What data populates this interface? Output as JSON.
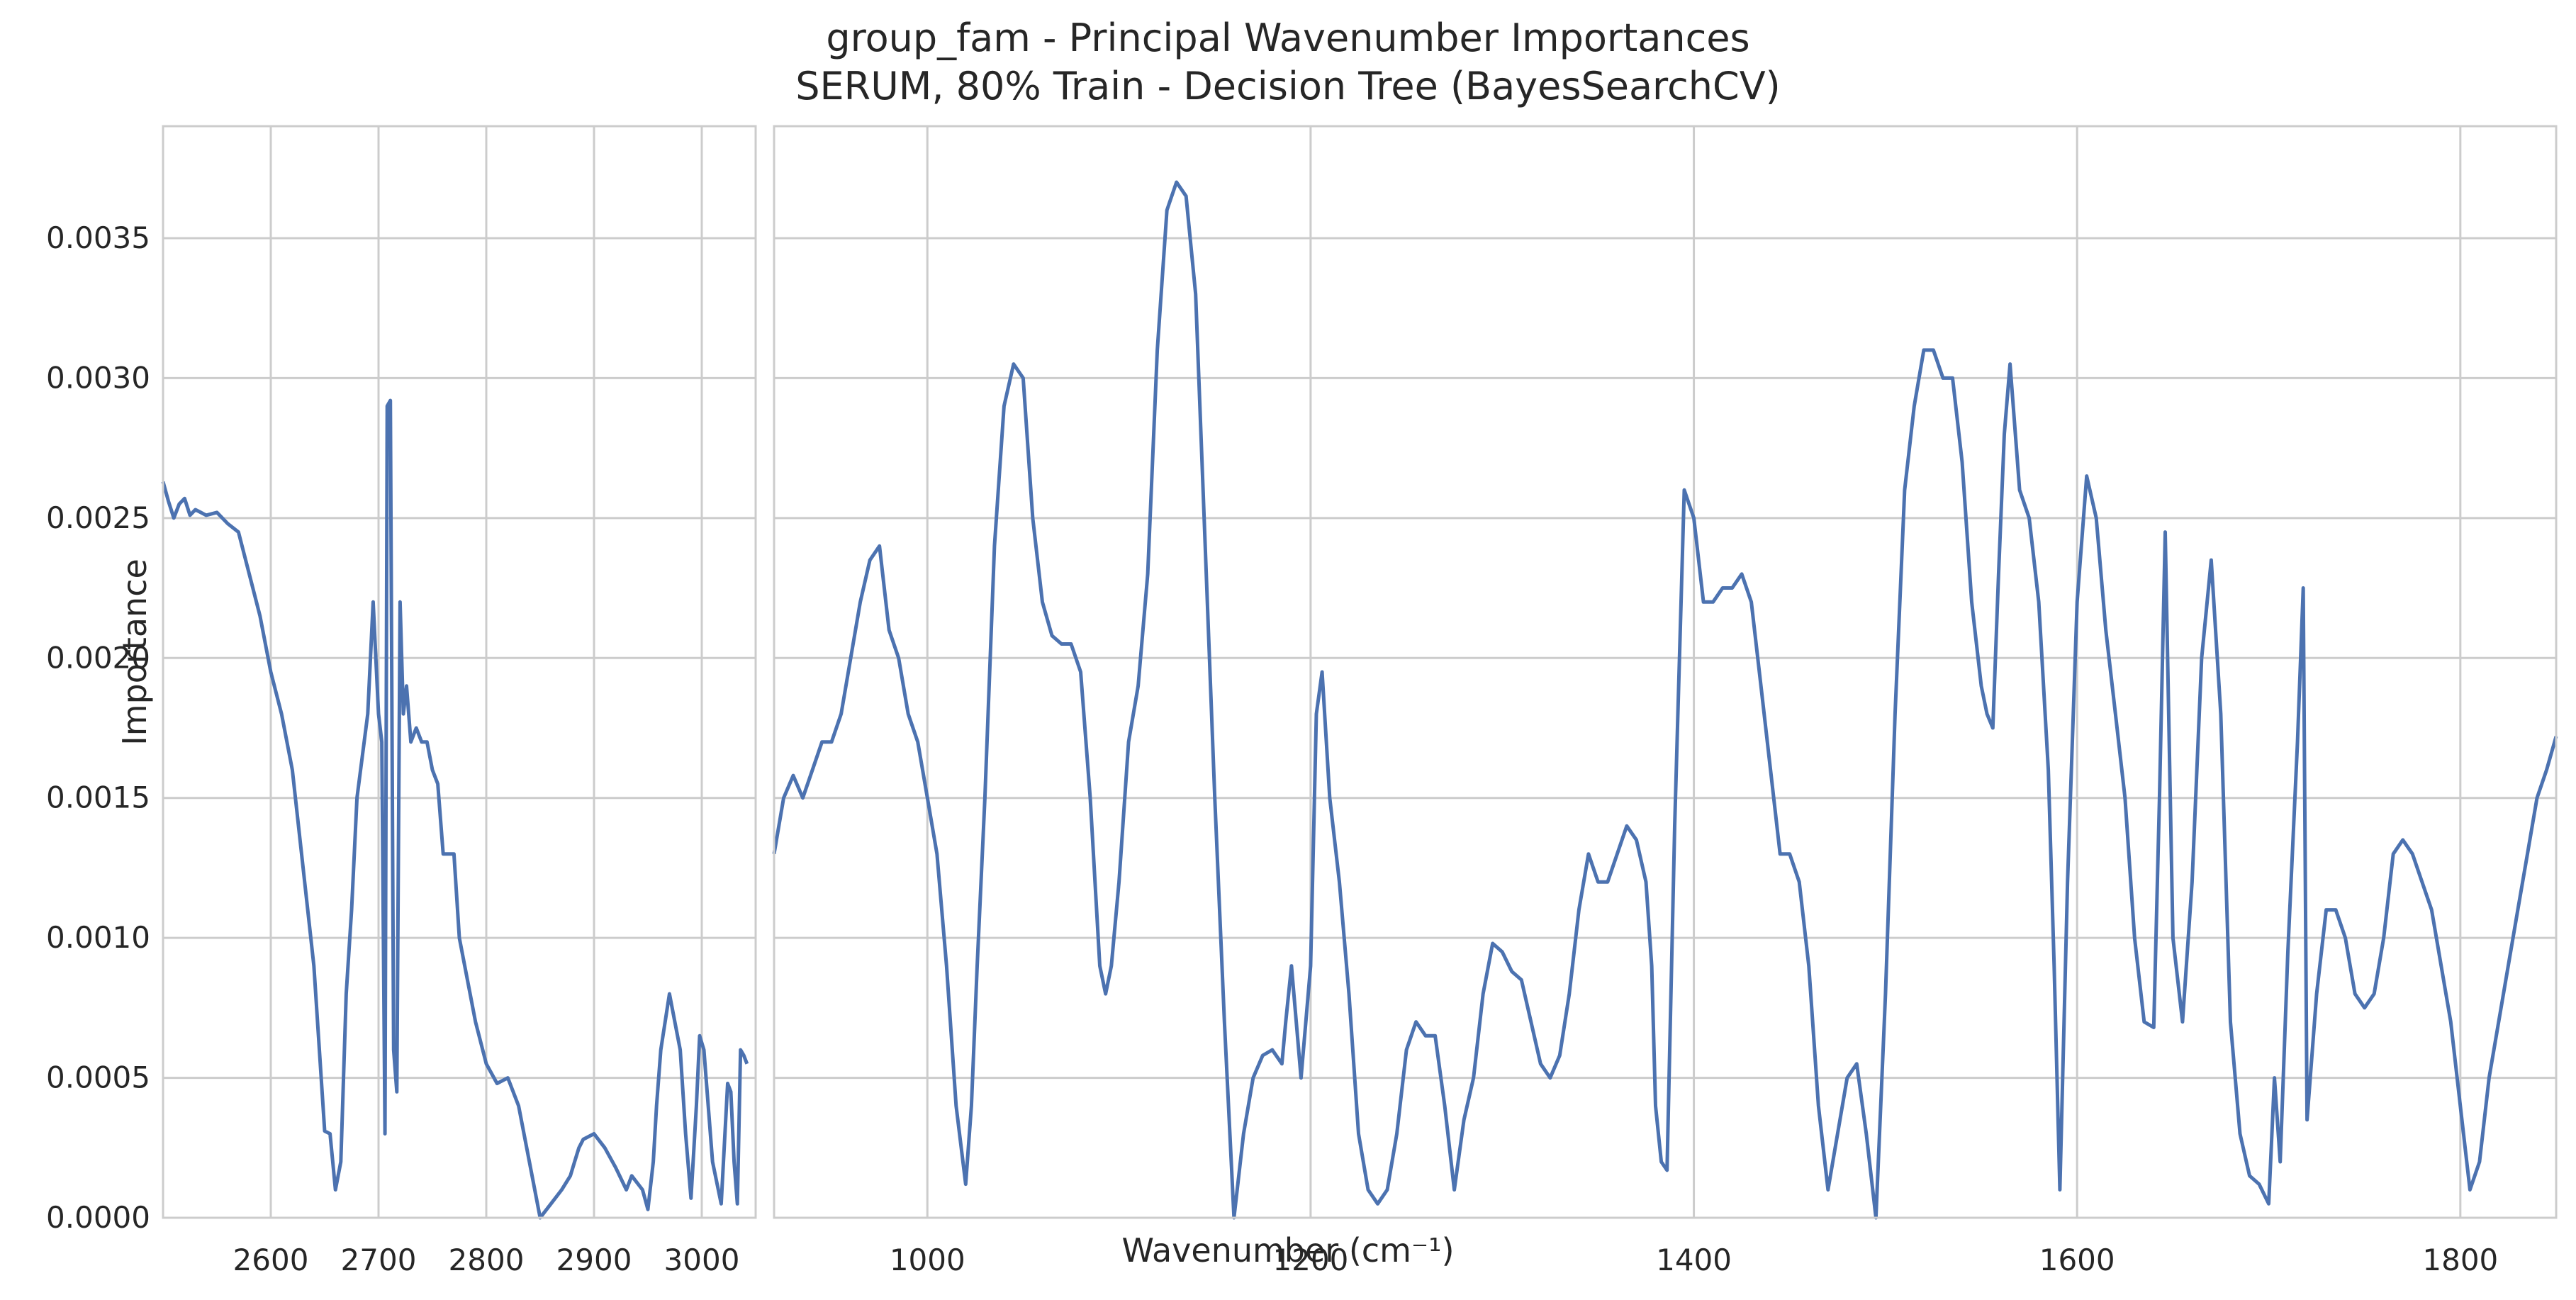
{
  "chart_data": {
    "type": "line",
    "title": "group_fam - Principal Wavenumber Importances",
    "subtitle": "SERUM, 80% Train - Decision Tree (BayesSearchCV)",
    "xlabel": "Wavenumber (cm⁻¹)",
    "ylabel": "Importance",
    "grid": true,
    "ylim": [
      0,
      0.0039
    ],
    "y_ticks": [
      "0.0000",
      "0.0005",
      "0.0010",
      "0.0015",
      "0.0020",
      "0.0025",
      "0.0030",
      "0.0035"
    ],
    "series_color": "#4c72b0",
    "panels": [
      {
        "name": "left",
        "xlim": [
          2500,
          3050
        ],
        "x_ticks": [
          2600,
          2700,
          2800,
          2900,
          3000
        ],
        "x": [
          2500,
          2505,
          2510,
          2515,
          2520,
          2525,
          2530,
          2535,
          2540,
          2550,
          2560,
          2570,
          2580,
          2590,
          2600,
          2610,
          2620,
          2630,
          2640,
          2650,
          2655,
          2660,
          2665,
          2670,
          2675,
          2680,
          2690,
          2695,
          2700,
          2703,
          2706,
          2708,
          2711,
          2714,
          2717,
          2720,
          2723,
          2726,
          2730,
          2735,
          2740,
          2745,
          2750,
          2755,
          2760,
          2770,
          2775,
          2780,
          2785,
          2790,
          2800,
          2810,
          2820,
          2830,
          2840,
          2850,
          2860,
          2870,
          2878,
          2882,
          2886,
          2890,
          2900,
          2910,
          2920,
          2930,
          2935,
          2945,
          2950,
          2955,
          2958,
          2962,
          2970,
          2980,
          2985,
          2990,
          2995,
          2998,
          3002,
          3006,
          3010,
          3018,
          3024,
          3027,
          3030,
          3033,
          3036,
          3039,
          3042
        ],
        "y": [
          0.00263,
          0.00256,
          0.0025,
          0.00255,
          0.00257,
          0.00251,
          0.00253,
          0.00252,
          0.00251,
          0.00252,
          0.00248,
          0.00245,
          0.0023,
          0.00215,
          0.00195,
          0.0018,
          0.0016,
          0.00125,
          0.0009,
          0.00031,
          0.0003,
          0.0001,
          0.0002,
          0.0008,
          0.0011,
          0.0015,
          0.0018,
          0.0022,
          0.0018,
          0.0017,
          0.0003,
          0.0029,
          0.00292,
          0.0006,
          0.00045,
          0.0022,
          0.0018,
          0.0019,
          0.0017,
          0.00175,
          0.0017,
          0.0017,
          0.0016,
          0.00155,
          0.0013,
          0.0013,
          0.001,
          0.0009,
          0.0008,
          0.0007,
          0.00055,
          0.00048,
          0.0005,
          0.0004,
          0.0002,
          0.0,
          5e-05,
          0.0001,
          0.00015,
          0.0002,
          0.00025,
          0.00028,
          0.0003,
          0.00025,
          0.00018,
          0.0001,
          0.00015,
          0.0001,
          3e-05,
          0.0002,
          0.0004,
          0.0006,
          0.0008,
          0.0006,
          0.0003,
          7e-05,
          0.0004,
          0.00065,
          0.0006,
          0.0004,
          0.0002,
          5e-05,
          0.00048,
          0.00045,
          0.0002,
          5e-05,
          0.0006,
          0.00058,
          0.00055
        ]
      },
      {
        "name": "right",
        "xlim": [
          920,
          1850
        ],
        "x_ticks": [
          1000,
          1200,
          1400,
          1600,
          1800
        ],
        "x": [
          920,
          925,
          930,
          935,
          940,
          945,
          950,
          955,
          960,
          965,
          970,
          975,
          980,
          985,
          990,
          995,
          1000,
          1005,
          1010,
          1015,
          1020,
          1023,
          1026,
          1030,
          1035,
          1040,
          1045,
          1050,
          1055,
          1060,
          1065,
          1070,
          1075,
          1080,
          1085,
          1090,
          1093,
          1096,
          1100,
          1105,
          1110,
          1115,
          1120,
          1125,
          1130,
          1135,
          1140,
          1145,
          1150,
          1155,
          1160,
          1165,
          1170,
          1175,
          1180,
          1185,
          1187,
          1190,
          1195,
          1200,
          1203,
          1206,
          1210,
          1215,
          1220,
          1225,
          1230,
          1235,
          1240,
          1245,
          1250,
          1255,
          1260,
          1265,
          1270,
          1275,
          1280,
          1285,
          1290,
          1295,
          1300,
          1305,
          1310,
          1315,
          1320,
          1325,
          1330,
          1335,
          1340,
          1345,
          1350,
          1355,
          1360,
          1365,
          1370,
          1375,
          1378,
          1380,
          1383,
          1386,
          1390,
          1395,
          1400,
          1405,
          1410,
          1415,
          1420,
          1425,
          1430,
          1435,
          1440,
          1445,
          1450,
          1455,
          1460,
          1465,
          1470,
          1475,
          1480,
          1485,
          1490,
          1495,
          1500,
          1505,
          1510,
          1515,
          1520,
          1525,
          1530,
          1535,
          1540,
          1545,
          1550,
          1553,
          1556,
          1559,
          1562,
          1565,
          1570,
          1575,
          1580,
          1585,
          1588,
          1591,
          1595,
          1600,
          1605,
          1610,
          1615,
          1620,
          1625,
          1630,
          1635,
          1640,
          1643,
          1646,
          1650,
          1655,
          1660,
          1665,
          1670,
          1675,
          1680,
          1685,
          1690,
          1695,
          1700,
          1703,
          1706,
          1710,
          1715,
          1718,
          1720,
          1725,
          1730,
          1735,
          1740,
          1745,
          1750,
          1755,
          1760,
          1765,
          1770,
          1775,
          1780,
          1785,
          1790,
          1795,
          1800,
          1805,
          1810,
          1815,
          1820,
          1825,
          1830,
          1835,
          1840,
          1845,
          1850
        ],
        "y": [
          0.0013,
          0.0015,
          0.00158,
          0.0015,
          0.0016,
          0.0017,
          0.0017,
          0.0018,
          0.002,
          0.0022,
          0.00235,
          0.0024,
          0.0021,
          0.002,
          0.0018,
          0.0017,
          0.0015,
          0.0013,
          0.0009,
          0.0004,
          0.00012,
          0.0004,
          0.0009,
          0.0015,
          0.0024,
          0.0029,
          0.00305,
          0.003,
          0.0025,
          0.0022,
          0.00208,
          0.00205,
          0.00205,
          0.00195,
          0.0015,
          0.0009,
          0.0008,
          0.0009,
          0.0012,
          0.0017,
          0.0019,
          0.0023,
          0.0031,
          0.0036,
          0.0037,
          0.00365,
          0.0033,
          0.0024,
          0.0015,
          0.0007,
          0.0,
          0.0003,
          0.0005,
          0.00058,
          0.0006,
          0.00055,
          0.0007,
          0.0009,
          0.0005,
          0.0009,
          0.0018,
          0.00195,
          0.0015,
          0.0012,
          0.0008,
          0.0003,
          0.0001,
          5e-05,
          0.0001,
          0.0003,
          0.0006,
          0.0007,
          0.00065,
          0.00065,
          0.0004,
          0.0001,
          0.00035,
          0.0005,
          0.0008,
          0.00098,
          0.00095,
          0.00088,
          0.00085,
          0.0007,
          0.00055,
          0.0005,
          0.00058,
          0.0008,
          0.0011,
          0.0013,
          0.0012,
          0.0012,
          0.0013,
          0.0014,
          0.00135,
          0.0012,
          0.0009,
          0.0004,
          0.0002,
          0.00017,
          0.0014,
          0.0026,
          0.0025,
          0.0022,
          0.0022,
          0.00225,
          0.00225,
          0.0023,
          0.0022,
          0.0019,
          0.0016,
          0.0013,
          0.0013,
          0.0012,
          0.0009,
          0.0004,
          0.0001,
          0.0003,
          0.0005,
          0.00055,
          0.0003,
          0.0,
          0.0008,
          0.0018,
          0.0026,
          0.0029,
          0.0031,
          0.0031,
          0.003,
          0.003,
          0.0027,
          0.0022,
          0.0019,
          0.0018,
          0.00175,
          0.0023,
          0.0028,
          0.00305,
          0.0026,
          0.0025,
          0.0022,
          0.0016,
          0.0009,
          0.0001,
          0.0012,
          0.0022,
          0.00265,
          0.0025,
          0.0021,
          0.0018,
          0.0015,
          0.001,
          0.0007,
          0.00068,
          0.0015,
          0.00245,
          0.001,
          0.0007,
          0.0012,
          0.002,
          0.00235,
          0.0018,
          0.0007,
          0.0003,
          0.00015,
          0.00012,
          5e-05,
          0.0005,
          0.0002,
          0.00095,
          0.0017,
          0.00225,
          0.00035,
          0.0008,
          0.0011,
          0.0011,
          0.001,
          0.0008,
          0.00075,
          0.0008,
          0.001,
          0.0013,
          0.00135,
          0.0013,
          0.0012,
          0.0011,
          0.0009,
          0.0007,
          0.0004,
          0.0001,
          0.0002,
          0.0005,
          0.0007,
          0.0009,
          0.0011,
          0.0013,
          0.0015,
          0.0016,
          0.00172
        ]
      }
    ]
  }
}
